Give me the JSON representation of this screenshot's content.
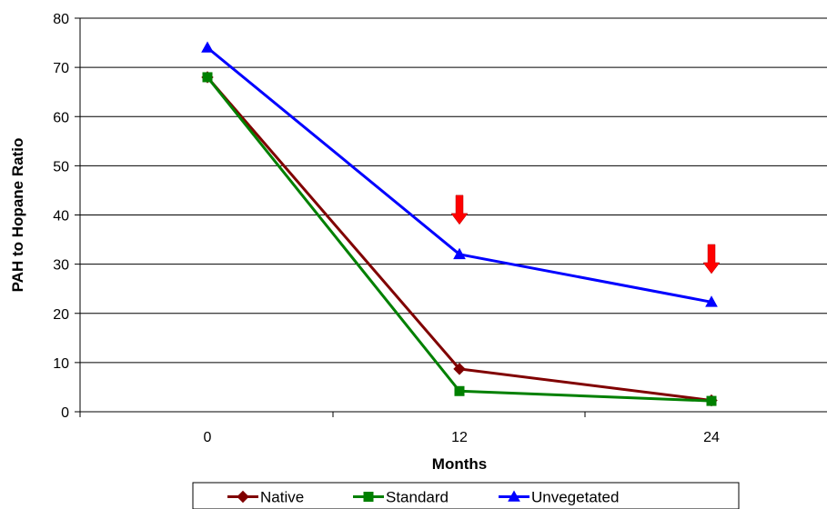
{
  "chart_data": {
    "type": "line",
    "x": [
      0,
      12,
      24
    ],
    "xlabel": "Months",
    "ylabel": "PAH to Hopane Ratio",
    "ylim": [
      0,
      80
    ],
    "yticks": [
      0,
      10,
      20,
      30,
      40,
      50,
      60,
      70,
      80
    ],
    "grid": "horizontal",
    "legend": "bottom",
    "series": [
      {
        "name": "Native",
        "values": [
          68,
          8.7,
          2.3
        ],
        "color": "#800000",
        "marker": "diamond"
      },
      {
        "name": "Standard",
        "values": [
          68,
          4.2,
          2.2
        ],
        "color": "#008000",
        "marker": "square"
      },
      {
        "name": "Unvegetated",
        "values": [
          74,
          32,
          22.3
        ],
        "color": "#0000FF",
        "marker": "triangle"
      }
    ],
    "annotations": [
      {
        "type": "arrow-down",
        "x": 12,
        "y": 44,
        "color": "#FF0000"
      },
      {
        "type": "arrow-down",
        "x": 24,
        "y": 34,
        "color": "#FF0000"
      }
    ]
  }
}
